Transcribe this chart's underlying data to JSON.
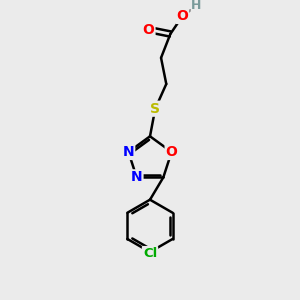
{
  "bg_color": "#ebebeb",
  "bond_color": "#000000",
  "bond_width": 1.8,
  "atom_colors": {
    "O": "#ff0000",
    "N": "#0000ff",
    "S": "#bbbb00",
    "Cl": "#00aa00",
    "C": "#000000",
    "H": "#7a9a9a"
  },
  "font_size": 8.5,
  "fig_size": [
    3.0,
    3.0
  ],
  "dpi": 100,
  "xlim": [
    0,
    10
  ],
  "ylim": [
    0,
    10
  ]
}
